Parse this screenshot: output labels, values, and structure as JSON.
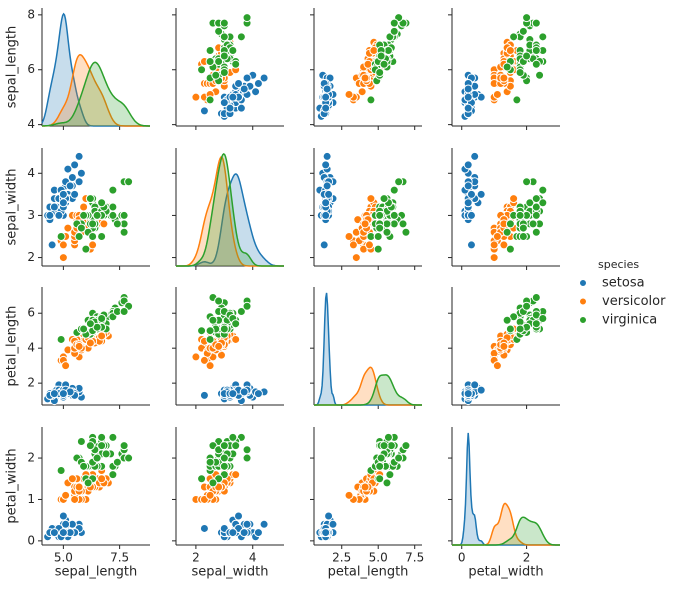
{
  "chart_data": {
    "type": "pairplot",
    "legend_title": "species",
    "variables": [
      {
        "label": "sepal_length",
        "xlim": [
          4.05,
          8.85
        ],
        "xticks": [
          {
            "value": 5.0,
            "label": "5.0"
          },
          {
            "value": 7.5,
            "label": "7.5"
          }
        ],
        "ylim": [
          3.95,
          8.25
        ],
        "yticks": [
          4,
          6,
          8
        ]
      },
      {
        "label": "sepal_width",
        "xlim": [
          1.3,
          5.1
        ],
        "xticks": [
          2,
          4
        ],
        "ylim": [
          1.8,
          4.6
        ],
        "yticks": [
          2,
          3,
          4
        ]
      },
      {
        "label": "petal_length",
        "xlim": [
          0.6,
          8.0
        ],
        "xticks": [
          {
            "value": 2.5,
            "label": "2.5"
          },
          {
            "value": 5.0,
            "label": "5.0"
          },
          {
            "value": 7.5,
            "label": "7.5"
          }
        ],
        "ylim": [
          0.75,
          7.5
        ],
        "yticks": [
          2,
          4,
          6
        ]
      },
      {
        "label": "petal_width",
        "xlim": [
          -0.3,
          3.03
        ],
        "xticks": [
          0,
          2
        ],
        "ylim": [
          -0.1,
          2.75
        ],
        "yticks": [
          0,
          1,
          2
        ]
      }
    ],
    "series": [
      {
        "name": "setosa",
        "color": "#1f77b4",
        "columns": [
          [
            5.1,
            4.9,
            4.7,
            4.6,
            5.0,
            5.4,
            4.6,
            5.0,
            4.4,
            4.9,
            5.4,
            4.8,
            4.8,
            4.3,
            5.8,
            5.7,
            5.4,
            5.1,
            5.7,
            5.1,
            5.4,
            5.1,
            4.6,
            5.1,
            4.8,
            5.0,
            5.0,
            5.2,
            5.2,
            4.7,
            4.8,
            5.4,
            5.2,
            5.5,
            4.9,
            5.0,
            5.5,
            4.9,
            4.4,
            5.1,
            5.0,
            4.5,
            4.4,
            5.0,
            5.1,
            4.8,
            5.1,
            4.6,
            5.3,
            5.0
          ],
          [
            3.5,
            3.0,
            3.2,
            3.1,
            3.6,
            3.9,
            3.4,
            3.4,
            2.9,
            3.1,
            3.7,
            3.4,
            3.0,
            3.0,
            4.0,
            4.4,
            3.9,
            3.5,
            3.8,
            3.8,
            3.4,
            3.7,
            3.6,
            3.3,
            3.4,
            3.0,
            3.4,
            3.5,
            3.4,
            3.2,
            3.1,
            3.4,
            4.1,
            4.2,
            3.1,
            3.2,
            3.5,
            3.6,
            3.0,
            3.4,
            3.5,
            2.3,
            3.2,
            3.5,
            3.8,
            3.0,
            3.8,
            3.2,
            3.7,
            3.3
          ],
          [
            1.4,
            1.4,
            1.3,
            1.5,
            1.4,
            1.7,
            1.4,
            1.5,
            1.4,
            1.5,
            1.5,
            1.6,
            1.4,
            1.1,
            1.2,
            1.5,
            1.3,
            1.4,
            1.7,
            1.5,
            1.7,
            1.5,
            1.0,
            1.7,
            1.9,
            1.6,
            1.6,
            1.5,
            1.4,
            1.6,
            1.6,
            1.5,
            1.5,
            1.4,
            1.5,
            1.2,
            1.3,
            1.4,
            1.3,
            1.5,
            1.3,
            1.3,
            1.3,
            1.6,
            1.9,
            1.4,
            1.6,
            1.4,
            1.5,
            1.4
          ],
          [
            0.2,
            0.2,
            0.2,
            0.2,
            0.2,
            0.4,
            0.3,
            0.2,
            0.2,
            0.1,
            0.2,
            0.2,
            0.1,
            0.1,
            0.2,
            0.4,
            0.4,
            0.3,
            0.3,
            0.3,
            0.2,
            0.4,
            0.2,
            0.5,
            0.2,
            0.2,
            0.4,
            0.2,
            0.2,
            0.2,
            0.2,
            0.4,
            0.1,
            0.2,
            0.2,
            0.2,
            0.2,
            0.1,
            0.2,
            0.2,
            0.3,
            0.3,
            0.2,
            0.6,
            0.4,
            0.3,
            0.2,
            0.2,
            0.2,
            0.2
          ]
        ]
      },
      {
        "name": "versicolor",
        "color": "#ff7f0e",
        "columns": [
          [
            7.0,
            6.4,
            6.9,
            5.5,
            6.5,
            5.7,
            6.3,
            4.9,
            6.6,
            5.2,
            5.0,
            5.9,
            6.0,
            6.1,
            5.6,
            6.7,
            5.6,
            5.8,
            6.2,
            5.6,
            5.9,
            6.1,
            6.3,
            6.1,
            6.4,
            6.6,
            6.8,
            6.7,
            6.0,
            5.7,
            5.5,
            5.5,
            5.8,
            6.0,
            5.4,
            6.0,
            6.7,
            6.3,
            5.6,
            5.5,
            5.5,
            6.1,
            5.8,
            5.0,
            5.6,
            5.7,
            5.7,
            6.2,
            5.1,
            5.7
          ],
          [
            3.2,
            3.2,
            3.1,
            2.3,
            2.8,
            2.8,
            3.3,
            2.4,
            2.9,
            2.7,
            2.0,
            3.0,
            2.2,
            2.9,
            2.9,
            3.1,
            3.0,
            2.7,
            2.2,
            2.5,
            3.2,
            2.8,
            2.5,
            2.8,
            2.9,
            3.0,
            2.8,
            3.0,
            2.9,
            2.6,
            2.4,
            2.4,
            2.7,
            2.7,
            3.0,
            3.4,
            3.1,
            2.3,
            3.0,
            2.5,
            2.6,
            3.0,
            2.6,
            2.3,
            2.7,
            3.0,
            2.9,
            2.9,
            2.5,
            2.8
          ],
          [
            4.7,
            4.5,
            4.9,
            4.0,
            4.6,
            4.5,
            4.7,
            3.3,
            4.6,
            3.9,
            3.5,
            4.2,
            4.0,
            4.7,
            3.6,
            4.4,
            4.5,
            4.1,
            4.5,
            3.9,
            4.8,
            4.0,
            4.9,
            4.7,
            4.3,
            4.4,
            4.8,
            5.0,
            4.5,
            3.5,
            3.8,
            3.7,
            3.9,
            5.1,
            4.5,
            4.5,
            4.7,
            4.4,
            4.1,
            4.0,
            4.4,
            4.6,
            4.0,
            3.3,
            4.2,
            4.2,
            4.2,
            4.3,
            3.0,
            4.1
          ],
          [
            1.4,
            1.5,
            1.5,
            1.3,
            1.5,
            1.3,
            1.6,
            1.0,
            1.3,
            1.4,
            1.0,
            1.5,
            1.0,
            1.4,
            1.3,
            1.4,
            1.5,
            1.0,
            1.5,
            1.1,
            1.8,
            1.3,
            1.5,
            1.2,
            1.3,
            1.4,
            1.4,
            1.7,
            1.5,
            1.0,
            1.1,
            1.0,
            1.2,
            1.6,
            1.5,
            1.6,
            1.5,
            1.3,
            1.3,
            1.3,
            1.2,
            1.4,
            1.2,
            1.0,
            1.3,
            1.2,
            1.3,
            1.3,
            1.1,
            1.3
          ]
        ]
      },
      {
        "name": "virginica",
        "color": "#2ca02c",
        "columns": [
          [
            6.3,
            5.8,
            7.1,
            6.3,
            6.5,
            7.6,
            4.9,
            7.3,
            6.7,
            7.2,
            6.5,
            6.4,
            6.8,
            5.7,
            5.8,
            6.4,
            6.5,
            7.7,
            7.7,
            6.0,
            6.9,
            5.6,
            7.7,
            6.3,
            6.7,
            7.2,
            6.2,
            6.1,
            6.4,
            7.2,
            7.4,
            7.9,
            6.4,
            6.3,
            6.1,
            7.7,
            6.3,
            6.4,
            6.0,
            6.9,
            6.7,
            6.9,
            5.8,
            6.8,
            6.7,
            6.7,
            6.3,
            6.5,
            6.2,
            5.9
          ],
          [
            3.3,
            2.7,
            3.0,
            2.9,
            3.0,
            3.0,
            2.5,
            2.9,
            2.5,
            3.6,
            3.2,
            2.7,
            3.0,
            2.5,
            2.8,
            3.2,
            3.0,
            3.8,
            2.6,
            2.2,
            3.2,
            2.8,
            2.8,
            2.7,
            3.3,
            3.2,
            2.8,
            3.0,
            2.8,
            3.0,
            2.8,
            3.8,
            2.8,
            2.8,
            2.6,
            3.0,
            3.4,
            3.1,
            3.0,
            3.1,
            3.1,
            3.1,
            2.7,
            3.2,
            3.3,
            3.0,
            2.5,
            3.0,
            3.4,
            3.0
          ],
          [
            6.0,
            5.1,
            5.9,
            5.6,
            5.8,
            6.6,
            4.5,
            6.3,
            5.8,
            6.1,
            5.1,
            5.3,
            5.5,
            5.0,
            5.1,
            5.3,
            5.5,
            6.7,
            6.9,
            5.0,
            5.7,
            4.9,
            6.7,
            4.9,
            5.7,
            6.0,
            4.8,
            4.9,
            5.6,
            5.8,
            6.1,
            6.4,
            5.6,
            5.1,
            5.6,
            6.1,
            5.6,
            5.5,
            4.8,
            5.4,
            5.6,
            5.1,
            5.1,
            5.9,
            5.7,
            5.2,
            5.0,
            5.2,
            5.4,
            5.1
          ],
          [
            2.5,
            1.9,
            2.1,
            1.8,
            2.2,
            2.1,
            1.7,
            1.8,
            1.8,
            2.5,
            2.0,
            1.9,
            2.1,
            2.0,
            2.4,
            2.3,
            1.8,
            2.2,
            2.3,
            1.5,
            2.3,
            2.0,
            2.0,
            1.8,
            2.1,
            1.8,
            1.8,
            1.8,
            2.1,
            1.6,
            1.9,
            2.0,
            2.2,
            1.5,
            1.4,
            2.3,
            2.4,
            1.8,
            1.8,
            2.1,
            2.4,
            2.3,
            1.9,
            2.3,
            2.5,
            2.3,
            1.9,
            2.0,
            2.3,
            1.8
          ]
        ]
      }
    ]
  }
}
